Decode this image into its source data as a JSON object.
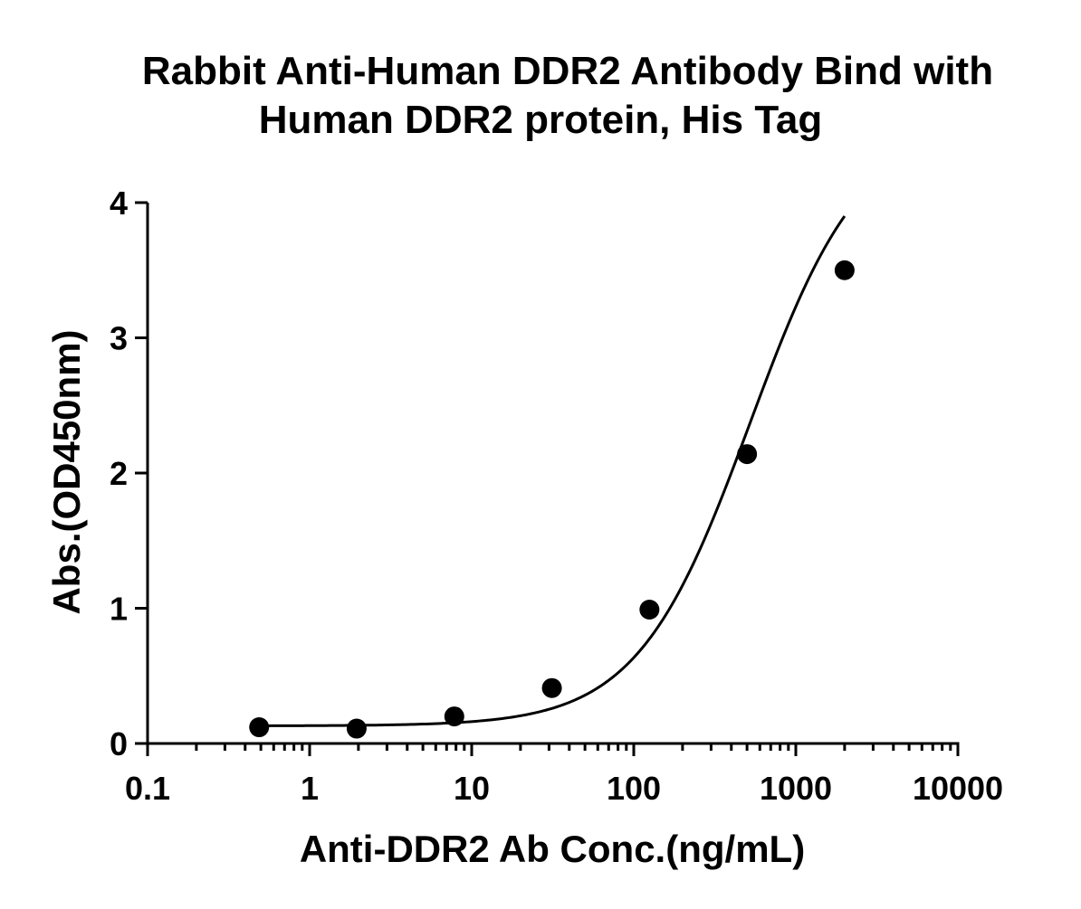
{
  "chart_data": {
    "type": "scatter",
    "title_lines": [
      "Rabbit Anti-Human DDR2 Antibody Bind with",
      "Human DDR2 protein, His Tag"
    ],
    "xlabel": "Anti-DDR2 Ab Conc.(ng/mL)",
    "ylabel": "Abs.(OD450nm)",
    "x_scale": "log",
    "xlim": [
      0.1,
      10000
    ],
    "ylim": [
      0,
      4
    ],
    "x_ticks": [
      0.1,
      1,
      10,
      100,
      1000,
      10000
    ],
    "x_tick_labels": [
      "0.1",
      "1",
      "10",
      "100",
      "1000",
      "10000"
    ],
    "y_ticks": [
      0,
      1,
      2,
      3,
      4
    ],
    "y_tick_labels": [
      "0",
      "1",
      "2",
      "3",
      "4"
    ],
    "grid": false,
    "series": [
      {
        "x": [
          0.488,
          1.95,
          7.81,
          31.25,
          125,
          500,
          2000
        ],
        "y": [
          0.12,
          0.11,
          0.2,
          0.41,
          0.99,
          2.14,
          3.5
        ],
        "fit": "4PL curve"
      }
    ],
    "colors": {
      "marker": "#000000",
      "line": "#000000"
    }
  }
}
